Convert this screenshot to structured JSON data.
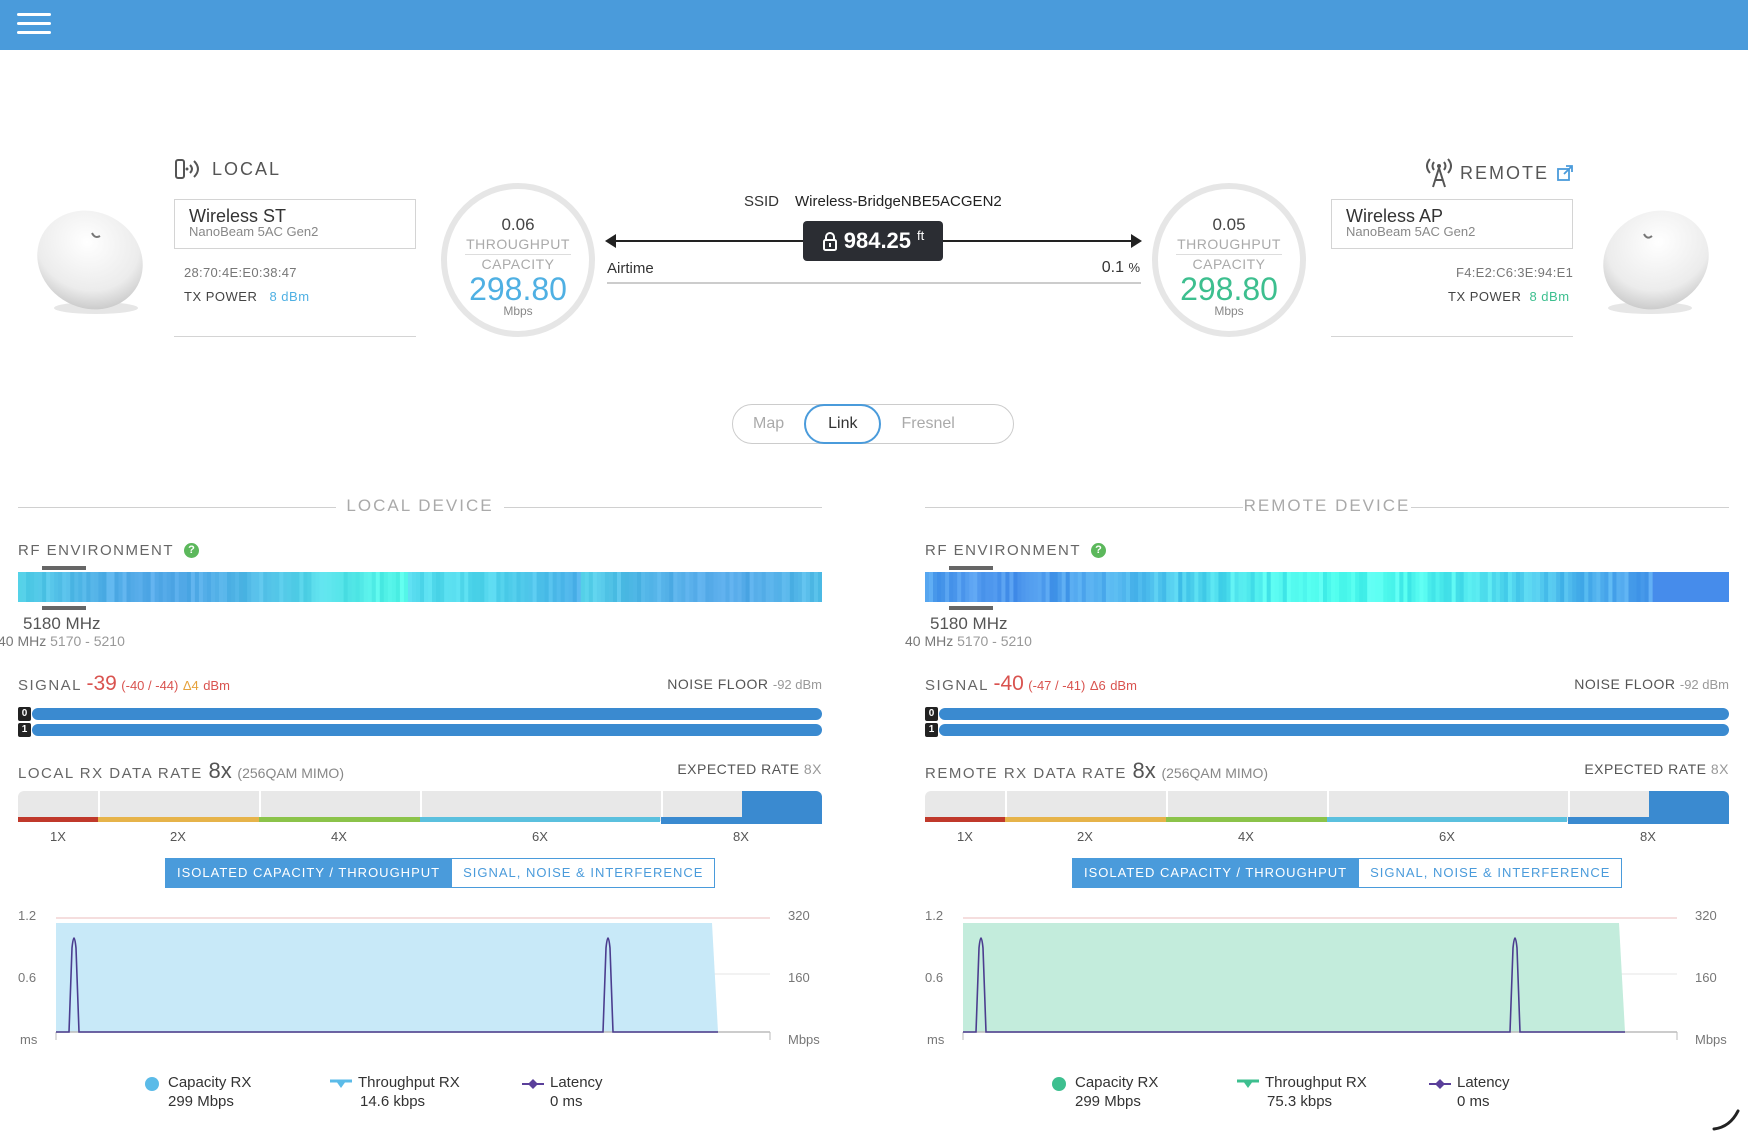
{
  "header": {
    "menu_icon": "hamburger-menu-icon",
    "bar_color": "#4a9bdb"
  },
  "link": {
    "ssid_label": "SSID",
    "ssid": "Wireless-BridgeNBE5ACGEN2",
    "distance_value": "984.25",
    "distance_unit": "ft",
    "airtime_label": "Airtime",
    "airtime_value": "0.1",
    "airtime_unit": "%"
  },
  "local": {
    "heading": "LOCAL",
    "name": "Wireless ST",
    "model": "NanoBeam 5AC Gen2",
    "mac": "28:70:4E:E0:38:47",
    "tx_power_label": "TX POWER",
    "tx_power_value": "8 dBm",
    "throughput": "0.06",
    "throughput_label": "THROUGHPUT",
    "capacity_label": "CAPACITY",
    "capacity": "298.80",
    "capacity_unit": "Mbps",
    "accent": "#4fb0e3"
  },
  "remote": {
    "heading": "REMOTE",
    "name": "Wireless AP",
    "model": "NanoBeam 5AC Gen2",
    "mac": "F4:E2:C6:3E:94:E1",
    "tx_power_label": "TX POWER",
    "tx_power_value": "8 dBm",
    "throughput": "0.05",
    "throughput_label": "THROUGHPUT",
    "capacity_label": "CAPACITY",
    "capacity": "298.80",
    "capacity_unit": "Mbps",
    "accent": "#3dbf8f"
  },
  "view_tabs": [
    {
      "label": "Map",
      "active": false
    },
    {
      "label": "Link",
      "active": true
    },
    {
      "label": "Fresnel",
      "active": false
    }
  ],
  "panels": [
    {
      "title": "LOCAL DEVICE",
      "rf_label": "RF ENVIRONMENT",
      "help": "?",
      "freq": "5180 MHz",
      "freq_width": "40 MHz",
      "freq_range": "5170 - 5210",
      "signal_label": "SIGNAL",
      "signal_value": "-39",
      "signal_chains": "(-40 / -44)",
      "signal_delta": "Δ4",
      "signal_unit": "dBm",
      "noise_label": "NOISE FLOOR",
      "noise_value": "-92 dBm",
      "chain0": "0",
      "chain1": "1",
      "rx_label": "LOCAL RX DATA RATE",
      "rx_rate": "8x",
      "rx_mod": "(256QAM MIMO)",
      "expected_label": "EXPECTED RATE",
      "expected_value": "8X",
      "ticks": [
        "1X",
        "2X",
        "4X",
        "6X",
        "8X"
      ],
      "toggle_on": "ISOLATED CAPACITY / THROUGHPUT",
      "toggle_off": "SIGNAL, NOISE & INTERFERENCE",
      "y_left": [
        "1.2",
        "0.6",
        "ms"
      ],
      "y_right": [
        "320",
        "160",
        "Mbps"
      ],
      "fill_color": "#c8e9f8",
      "legend": [
        {
          "label": "Capacity RX",
          "value": "299 Mbps",
          "icon": "dot-icon",
          "color": "#5bbbe8"
        },
        {
          "label": "Throughput RX",
          "value": "14.6 kbps",
          "icon": "line-marker-icon",
          "color": "#5bbbe8"
        },
        {
          "label": "Latency",
          "value": "0 ms",
          "icon": "diamond-icon",
          "color": "#5a3f9a"
        }
      ]
    },
    {
      "title": "REMOTE DEVICE",
      "rf_label": "RF ENVIRONMENT",
      "help": "?",
      "freq": "5180 MHz",
      "freq_width": "40 MHz",
      "freq_range": "5170 - 5210",
      "signal_label": "SIGNAL",
      "signal_value": "-40",
      "signal_chains": "(-47 / -41)",
      "signal_delta": "Δ6",
      "signal_unit": "dBm",
      "noise_label": "NOISE FLOOR",
      "noise_value": "-92 dBm",
      "chain0": "0",
      "chain1": "1",
      "rx_label": "REMOTE RX DATA RATE",
      "rx_rate": "8x",
      "rx_mod": "(256QAM MIMO)",
      "expected_label": "EXPECTED RATE",
      "expected_value": "8X",
      "ticks": [
        "1X",
        "2X",
        "4X",
        "6X",
        "8X"
      ],
      "toggle_on": "ISOLATED CAPACITY / THROUGHPUT",
      "toggle_off": "SIGNAL, NOISE & INTERFERENCE",
      "y_left": [
        "1.2",
        "0.6",
        "ms"
      ],
      "y_right": [
        "320",
        "160",
        "Mbps"
      ],
      "fill_color": "#c3ecdc",
      "legend": [
        {
          "label": "Capacity RX",
          "value": "299 Mbps",
          "icon": "dot-icon",
          "color": "#3dbf8f"
        },
        {
          "label": "Throughput RX",
          "value": "75.3 kbps",
          "icon": "line-marker-icon",
          "color": "#3dbf8f"
        },
        {
          "label": "Latency",
          "value": "0 ms",
          "icon": "diamond-icon",
          "color": "#5a3f9a"
        }
      ]
    }
  ]
}
